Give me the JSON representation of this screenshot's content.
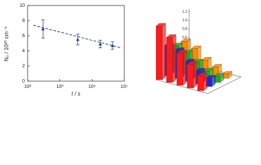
{
  "chart_data": [
    {
      "type": "line",
      "x_label": "t / s",
      "y_label": "N₀ / 10²⁰ cm⁻³",
      "x": [
        300,
        3600,
        18000,
        43000
      ],
      "values": [
        6.9,
        5.5,
        4.9,
        4.7
      ],
      "errors": [
        1.2,
        0.7,
        0.5,
        0.5
      ],
      "fit": {
        "x": [
          150,
          80000
        ],
        "values": [
          7.4,
          4.4
        ]
      },
      "color": "#1f3a93",
      "log_x": true,
      "xlim": [
        100,
        100000
      ],
      "xticks": [
        {
          "value": 100,
          "label": "10²"
        },
        {
          "value": 1000,
          "label": "10³"
        },
        {
          "value": 10000,
          "label": "10⁴"
        },
        {
          "value": 100000,
          "label": "10⁵"
        }
      ],
      "ylim": [
        0,
        10
      ],
      "yticks": [
        0,
        2,
        4,
        6,
        8,
        10
      ]
    },
    {
      "type": "bar3d",
      "series": [
        {
          "color": "#ff1a1a",
          "values": [
            1.25,
            1.05,
            0.75,
            0.55,
            0.35
          ]
        },
        {
          "color": "#1a2bcc",
          "values": [
            0.7,
            0.65,
            0.45,
            0.3,
            0.2
          ]
        },
        {
          "color": "#22aa22",
          "values": [
            0.6,
            0.5,
            0.35,
            0.2,
            0.15
          ]
        },
        {
          "color": "#ff8c00",
          "values": [
            0.6,
            0.5,
            0.3,
            0.2,
            0.1
          ]
        }
      ],
      "ylim": [
        0,
        1.2
      ],
      "yticks": [
        {
          "value": 0,
          "label": "0.0"
        },
        {
          "value": 0.2,
          "label": "0.2"
        },
        {
          "value": 0.4,
          "label": "0.4"
        },
        {
          "value": 0.6,
          "label": "0.6"
        },
        {
          "value": 0.8,
          "label": "0.8"
        },
        {
          "value": 1,
          "label": "1.0"
        },
        {
          "value": 1.2,
          "label": "1.2"
        }
      ]
    }
  ]
}
